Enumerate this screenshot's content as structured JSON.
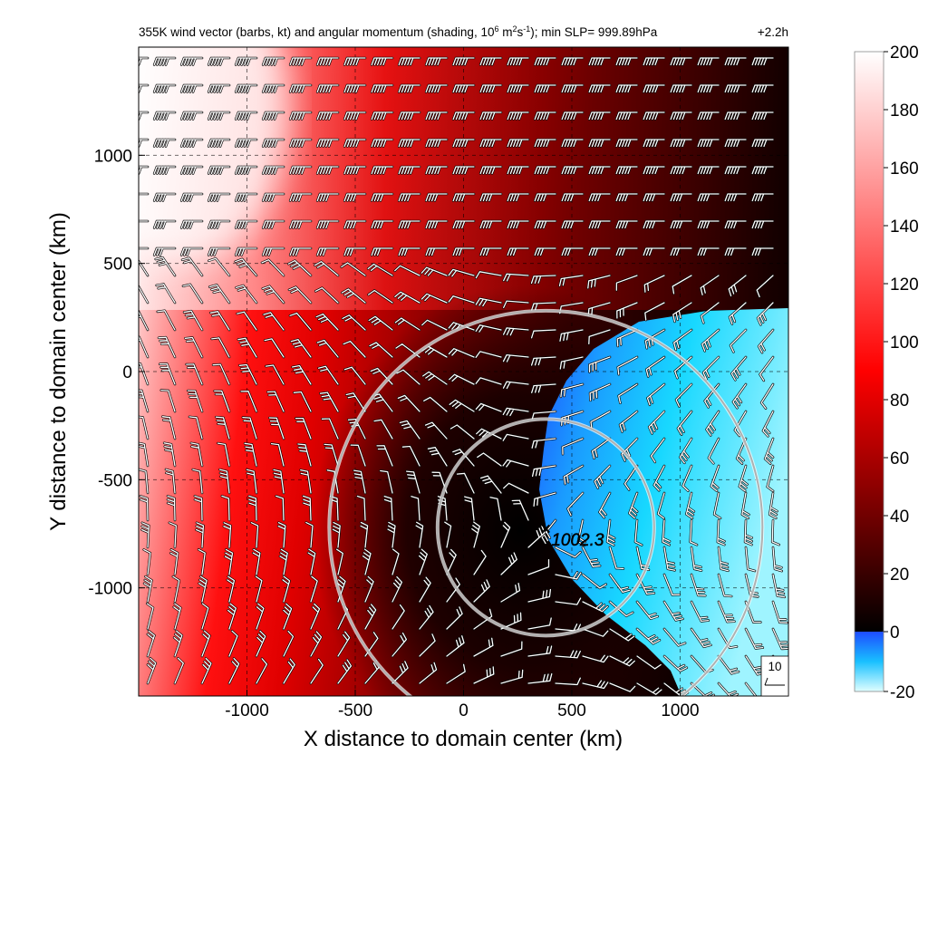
{
  "title": {
    "main_pre": "355K wind vector (barbs, kt) and angular momentum (shading, 10",
    "exp1": "6",
    "mid1": " m",
    "exp2": "2",
    "mid2": "s",
    "exp3": "-1",
    "main_post": "); min SLP= 999.89hPa",
    "time": "+2.2h"
  },
  "axes": {
    "xlabel": "X distance to domain center (km)",
    "ylabel": "Y distance to domain center (km)",
    "xlim": [
      -1500,
      1500
    ],
    "ylim": [
      -1500,
      1500
    ]
  },
  "center_marker": {
    "symbol": "×",
    "label": "1002.3",
    "x": 380,
    "y": -720
  },
  "barb_legend": "10",
  "colors": {
    "white": "#ffffff",
    "red": "#ff0000",
    "black": "#000000",
    "blue": "#1e4cff",
    "cyan": "#00e5ff",
    "ring": "#b0b0b0"
  },
  "chart_data": {
    "type": "heatmap",
    "title": "355K wind vector (barbs, kt) and angular momentum (shading, 10^6 m^2 s^-1); min SLP= 999.89hPa",
    "variable": "angular momentum",
    "units": "10^6 m^2 s^-1",
    "overlay": "wind barbs (kt)",
    "xlabel": "X distance to domain center (km)",
    "ylabel": "Y distance to domain center (km)",
    "xlim": [
      -1500,
      1500
    ],
    "ylim": [
      -1500,
      1500
    ],
    "x_ticks": [
      -1000,
      -500,
      0,
      500,
      1000
    ],
    "y_ticks": [
      -1000,
      -500,
      0,
      500,
      1000
    ],
    "grid": true,
    "colorbar": {
      "ticks": [
        200,
        180,
        160,
        140,
        120,
        100,
        80,
        60,
        40,
        20,
        0,
        -20
      ],
      "range": [
        -20,
        200
      ],
      "colors_low_to_high": [
        "cyan",
        "blue",
        "black",
        "red",
        "white"
      ]
    },
    "rings_center_km": [
      380,
      -720
    ],
    "rings_radius_km": [
      500,
      1000
    ],
    "min_slp_hpa": 999.89,
    "center_slp_hpa": 1002.3,
    "forecast_time": "+2.2h",
    "barb_reference_kt": 10
  }
}
